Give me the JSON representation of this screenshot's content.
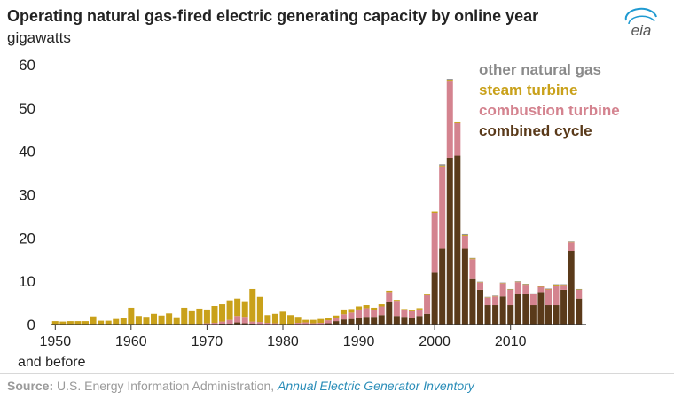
{
  "header": {
    "title": "Operating natural gas-fired electric generating capacity by online year",
    "unit": "gigawatts",
    "logo_text": "eia"
  },
  "footer": {
    "source_label": "Source:",
    "source_text": "U.S. Energy Information Administration,",
    "source_link": "Annual Electric Generator Inventory"
  },
  "colors": {
    "combined_cycle": "#5a3a1a",
    "combustion_turbine": "#d4838f",
    "steam_turbine": "#c9a11a",
    "other_natural_gas": "#8a8a8a"
  },
  "chart_data": {
    "type": "bar",
    "stacked": true,
    "x_start": 1950,
    "x_end": 2019,
    "xticks": [
      "1950",
      "1960",
      "1970",
      "1980",
      "1990",
      "2000",
      "2010"
    ],
    "xtick_note": "and before",
    "ylim": [
      0,
      60
    ],
    "yticks": [
      0,
      10,
      20,
      30,
      40,
      50,
      60
    ],
    "ylabel": "gigawatts",
    "grid": false,
    "legend_position": "top-right",
    "series": [
      {
        "name": "combined cycle",
        "color": "#5a3a1a",
        "values": [
          0,
          0,
          0,
          0,
          0,
          0,
          0,
          0,
          0,
          0,
          0,
          0,
          0,
          0,
          0,
          0,
          0,
          0,
          0,
          0,
          0,
          0,
          0.2,
          0.2,
          0.5,
          0.3,
          0.2,
          0.1,
          0,
          0,
          0,
          0,
          0,
          0,
          0,
          0,
          0.3,
          0.8,
          1.2,
          1.3,
          1.5,
          1.8,
          1.8,
          2.2,
          5.2,
          2,
          1.8,
          1.5,
          2,
          2.5,
          12,
          17.5,
          38.5,
          39,
          17.5,
          10.5,
          8,
          4.5,
          4.5,
          6.5,
          4.5,
          7,
          7,
          4.5,
          7.5,
          4.5,
          4.5,
          8,
          17,
          6
        ]
      },
      {
        "name": "combustion turbine",
        "color": "#d4838f",
        "values": [
          0,
          0,
          0,
          0,
          0,
          0,
          0,
          0,
          0,
          0,
          0,
          0,
          0,
          0,
          0,
          0,
          0,
          0,
          0,
          0,
          0.3,
          0.4,
          0.5,
          0.9,
          1.5,
          1.5,
          0.5,
          0.5,
          0.4,
          0.3,
          0,
          0,
          0.4,
          0.5,
          0.3,
          0.4,
          0.7,
          0.7,
          1.2,
          1.5,
          2,
          2,
          1.6,
          2,
          2.3,
          3.5,
          1.5,
          1.6,
          1.5,
          4.3,
          13.8,
          19,
          17.8,
          7.5,
          3,
          4.6,
          1.7,
          1.7,
          2,
          3,
          3.5,
          2.8,
          2.2,
          2.5,
          1.2,
          3.6,
          4.5,
          1.1,
          2,
          2
        ]
      },
      {
        "name": "steam turbine",
        "color": "#c9a11a",
        "values": [
          0.8,
          0.7,
          0.8,
          0.8,
          0.8,
          1.9,
          0.9,
          0.9,
          1.3,
          1.6,
          3.9,
          2,
          1.8,
          2.5,
          2.1,
          2.6,
          1.7,
          3.9,
          3.1,
          3.7,
          3.2,
          3.9,
          4,
          4.5,
          4,
          3.6,
          7.5,
          5.8,
          1.8,
          2.2,
          3,
          2.2,
          1.4,
          0.6,
          0.8,
          0.9,
          0.6,
          0.6,
          1.1,
          0.8,
          0.7,
          0.7,
          0.5,
          0.5,
          0.3,
          0.2,
          0.3,
          0.3,
          0.3,
          0.3,
          0.3,
          0.2,
          0.2,
          0.2,
          0.2,
          0.2,
          0.1,
          0.1,
          0.1,
          0.1,
          0.1,
          0.1,
          0.1,
          0.1,
          0.1,
          0.1,
          0.2,
          0.1,
          0.1,
          0.1
        ]
      },
      {
        "name": "other natural gas",
        "color": "#8a8a8a",
        "values": [
          0,
          0,
          0,
          0,
          0,
          0,
          0,
          0,
          0,
          0,
          0,
          0,
          0,
          0,
          0,
          0,
          0,
          0,
          0,
          0,
          0,
          0,
          0,
          0,
          0,
          0,
          0,
          0,
          0,
          0,
          0,
          0,
          0,
          0,
          0,
          0,
          0,
          0,
          0,
          0,
          0,
          0,
          0,
          0,
          0,
          0,
          0,
          0,
          0,
          0,
          0,
          0.3,
          0.2,
          0.2,
          0.2,
          0.1,
          0.1,
          0.1,
          0.1,
          0.1,
          0.1,
          0.1,
          0.1,
          0.1,
          0.1,
          0.1,
          0.1,
          0.1,
          0.1,
          0.1
        ]
      }
    ],
    "legend_order": [
      "other natural gas",
      "steam turbine",
      "combustion turbine",
      "combined cycle"
    ]
  }
}
